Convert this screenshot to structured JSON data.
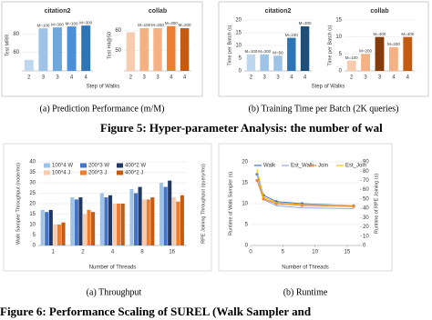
{
  "chart_data": [
    {
      "type": "bar",
      "title": "citation2",
      "ylabel": "Test MRR",
      "xlabel": "Step of Walks",
      "categories": [
        "2",
        "3",
        "3",
        "4",
        "4"
      ],
      "values": [
        52,
        86,
        87,
        88,
        89
      ],
      "annotations": [
        null,
        "M=100",
        "M=300",
        "M=100",
        "M=300"
      ],
      "colors": [
        "#bdd7ee",
        "#9dc3e6",
        "#6fa8dc",
        "#4a90d9",
        "#2e75b6"
      ],
      "ylim": [
        40,
        95
      ],
      "yticks": [
        60,
        80
      ],
      "grid": true
    },
    {
      "type": "bar",
      "title": "collab",
      "ylabel": "Test Hit@50",
      "categories": [
        "2",
        "3",
        "3",
        "4",
        "4"
      ],
      "values": [
        59,
        61,
        61,
        62,
        61
      ],
      "annotations": [
        null,
        "M=100",
        "M=200",
        "M=300",
        "M=200"
      ],
      "colors": [
        "#f8cbad",
        "#f4b183",
        "#f4b183",
        "#ed7d31",
        "#c55a11"
      ],
      "ylim": [
        40,
        65
      ],
      "yticks": [
        50,
        60
      ],
      "grid": true
    },
    {
      "type": "bar",
      "title": "citation2",
      "ylabel": "Time per Batch (s)",
      "xlabel": "Step of Walks",
      "categories": [
        "2",
        "3",
        "3",
        "4",
        "4"
      ],
      "values": [
        6.5,
        6.5,
        6,
        13,
        17.5
      ],
      "annotations": [
        "M=100",
        "M=300",
        "M=50",
        "M=100",
        "M=300"
      ],
      "colors": [
        "#bdd7ee",
        "#9dc3e6",
        "#9dc3e6",
        "#2e75b6",
        "#1f4e79"
      ],
      "ylim": [
        0,
        20
      ],
      "yticks": [
        0,
        5,
        10,
        15,
        20
      ],
      "grid": true
    },
    {
      "type": "bar",
      "title": "collab",
      "ylabel": "Time per Batch (s)",
      "categories": [
        "2",
        "3",
        "3",
        "4",
        "4"
      ],
      "values": [
        3,
        5,
        10,
        7,
        10
      ],
      "annotations": [
        "M=100",
        "M=200",
        "M=400",
        "M=200",
        "M=400"
      ],
      "colors": [
        "#f8cbad",
        "#f4b183",
        "#843c0c",
        "#f4b183",
        "#c55a11"
      ],
      "ylim": [
        0,
        15
      ],
      "yticks": [
        0,
        5,
        10,
        15
      ],
      "grid": true
    },
    {
      "type": "bar",
      "ylabel": "Walk Sampler Throughput (node/ms)",
      "y2label": "RPE Joining Throughput (query/ms)",
      "xlabel": "Number of Threads",
      "categories": [
        "1",
        "2",
        "4",
        "8",
        "16"
      ],
      "series": [
        {
          "name": "100*4 W",
          "color": "#9dc3e6",
          "values": [
            17,
            23,
            25,
            27,
            30
          ]
        },
        {
          "name": "200*3 W",
          "color": "#4472c4",
          "values": [
            16,
            22,
            23,
            25,
            28
          ]
        },
        {
          "name": "400*2 W",
          "color": "#203864",
          "values": [
            17,
            23,
            24,
            28,
            31
          ]
        },
        {
          "name": "100*4 J",
          "color": "#f8cbad",
          "axis": "y2",
          "values": [
            10,
            15,
            20,
            22,
            23
          ]
        },
        {
          "name": "200*3 J",
          "color": "#ed7d31",
          "axis": "y2",
          "values": [
            10,
            17,
            20,
            22,
            21
          ]
        },
        {
          "name": "400*2 J",
          "color": "#c55a11",
          "axis": "y2",
          "values": [
            11,
            16,
            20,
            23,
            24
          ]
        }
      ],
      "ylim": [
        0,
        40
      ],
      "yticks": [
        0,
        5,
        10,
        15,
        20,
        25,
        30,
        35,
        40
      ],
      "y2lim": [
        0,
        40
      ],
      "grid": true
    },
    {
      "type": "line",
      "ylabel": "Runtime of Walk Sampler (s)",
      "y2label": "Runtime of RPE Joining (s)",
      "xlabel": "Number of Threads",
      "x": [
        1,
        2,
        4,
        8,
        16
      ],
      "series": [
        {
          "name": "Walk",
          "color": "#4472c4",
          "marker": true,
          "values": [
            17,
            12,
            10.5,
            10,
            9.5
          ]
        },
        {
          "name": "Est_Walk",
          "color": "#8faadc",
          "values": [
            17,
            11,
            9.5,
            9,
            8.8
          ]
        },
        {
          "name": "Join",
          "color": "#ed7d31",
          "axis": "y2",
          "marker": true,
          "values": [
            70,
            50,
            45,
            43,
            42
          ]
        },
        {
          "name": "Est_Join",
          "color": "#ffc000",
          "axis": "y2",
          "values": [
            82,
            52,
            46,
            44,
            43
          ]
        }
      ],
      "xlim": [
        0,
        17
      ],
      "xticks": [
        0,
        5,
        10,
        15
      ],
      "ylim": [
        0,
        20
      ],
      "yticks": [
        0,
        5,
        10,
        15,
        20
      ],
      "y2lim": [
        0,
        90
      ],
      "y2ticks": [
        0,
        10,
        20,
        30,
        40,
        50,
        60,
        70,
        80,
        90
      ],
      "grid": true
    }
  ],
  "captions": [
    "(a)  Prediction Performance (m/M)",
    "(b)  Training Time per Batch (2K queries)",
    "(a)  Throughput",
    "(b)  Runtime"
  ],
  "figure_titles": [
    "Figure 5: Hyper-parameter Analysis: the number of wal",
    "Figure 6: Performance Scaling of SUREL (Walk Sampler and"
  ]
}
